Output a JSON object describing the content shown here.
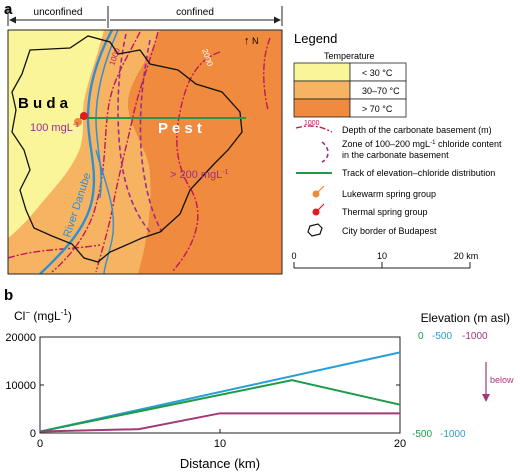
{
  "panel_a": {
    "panel_label": "a",
    "unconfined_label": "unconfined",
    "confined_label": "confined",
    "north_label": "N",
    "buda_label": "B u d a",
    "pest_label": "P e s t",
    "cl_100_label": "100 mgL",
    "cl_200_label": "> 200 mgL",
    "contour_1000_label": "1000",
    "contour_2000_label": "2000",
    "river_label": "River Danube",
    "colors": {
      "cold": "#fbf59a",
      "warm": "#f6b463",
      "hot": "#ef8a3e",
      "river": "#2f8fd0",
      "contour": "#c0175a",
      "chloride_zone": "#9c2d8c",
      "track": "#1f9a4a",
      "lukewarm": "#ee8a3a",
      "thermal": "#e21a22"
    },
    "legend": {
      "title": "Legend",
      "temperature_title": "Temperature",
      "temp_items": [
        "< 30 °C",
        "30–70 °C",
        "> 70 °C"
      ],
      "contour_label": "Depth of the carbonate basement (m)",
      "contour_value": "1000",
      "chloride_zone_label": [
        "Zone of 100–200 mgL",
        "chloride content",
        "in the carbonate basement"
      ],
      "track_label": "Track of elevation–chloride distribution",
      "lukewarm_label": "Lukewarm spring group",
      "thermal_label": "Thermal spring group",
      "city_label": "City border of Budapest"
    },
    "scale_bar": {
      "ticks": [
        "0",
        "10",
        "20 km"
      ]
    }
  },
  "panel_b": {
    "panel_label": "b",
    "y_left_label": "Cl",
    "y_right_label": "Elevation (m asl)",
    "elev_top": [
      "0",
      "-500",
      "-1000"
    ],
    "elev_bottom": [
      "-500",
      "-1000"
    ],
    "below_label": "below",
    "x_label": "Distance (km)"
  },
  "chart_data": {
    "type": "line",
    "xlabel": "Distance (km)",
    "ylabel": "Cl− (mgL−1)",
    "xlim": [
      0,
      20
    ],
    "ylim": [
      0,
      20000
    ],
    "x_ticks": [
      "0",
      "10",
      "20"
    ],
    "y_ticks": [
      "0",
      "10000",
      "20000"
    ],
    "series": [
      {
        "color": "#2a9fd6",
        "points": [
          [
            0,
            300
          ],
          [
            20,
            16800
          ]
        ]
      },
      {
        "color": "#1f9a4a",
        "points": [
          [
            0,
            300
          ],
          [
            14,
            11000
          ],
          [
            20,
            5900
          ]
        ]
      },
      {
        "color": "#a23a7a",
        "points": [
          [
            0,
            300
          ],
          [
            5.5,
            800
          ],
          [
            10,
            4100
          ],
          [
            20,
            4100
          ]
        ]
      }
    ]
  }
}
